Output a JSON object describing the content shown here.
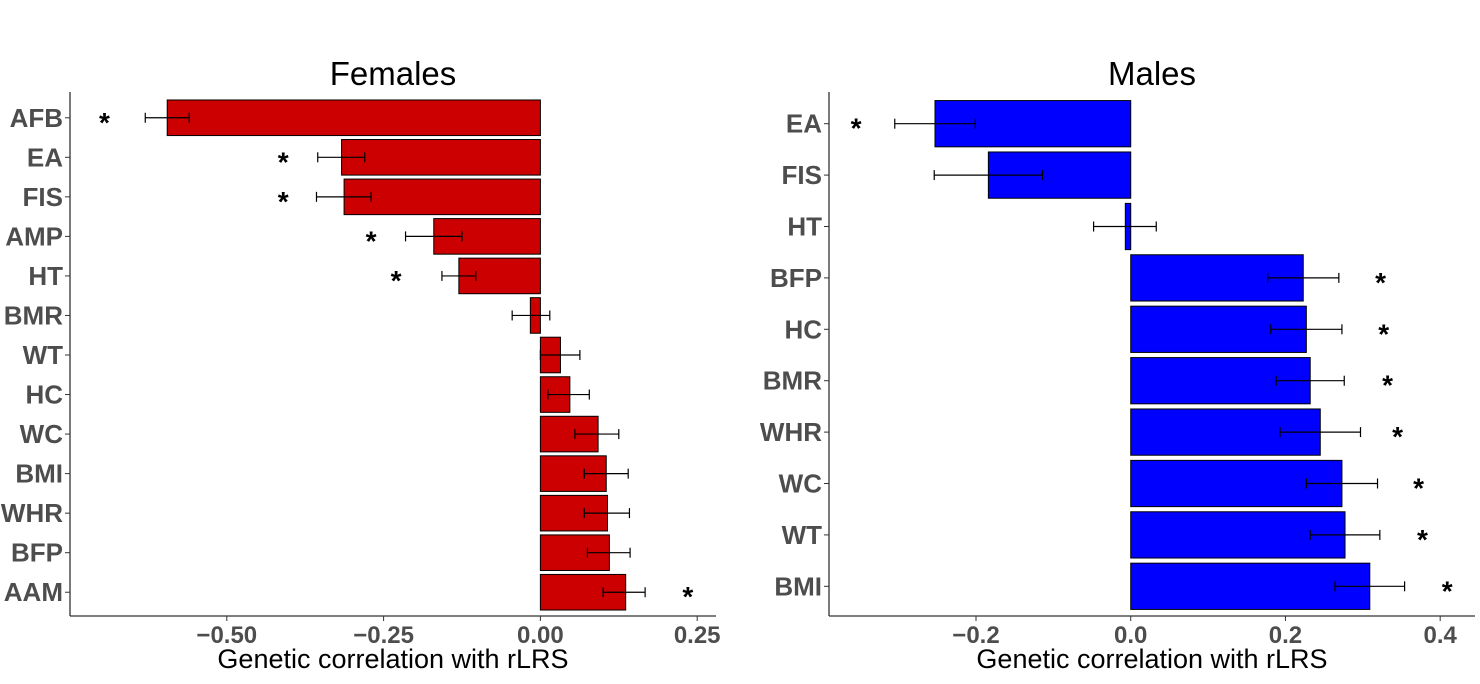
{
  "chart_data": [
    {
      "type": "bar",
      "orientation": "horizontal",
      "title": "Females",
      "xlabel": "Genetic correlation with rLRS",
      "ylabel": "",
      "color": "#cc0000",
      "xlim": [
        -0.75,
        0.28
      ],
      "xticks": [
        -0.5,
        -0.25,
        0.0,
        0.25
      ],
      "xtick_labels": [
        "−0.50",
        "−0.25",
        "0.00",
        "0.25"
      ],
      "grid": false,
      "categories": [
        "AFB",
        "EA",
        "FIS",
        "AMP",
        "HT",
        "BMR",
        "WT",
        "HC",
        "WC",
        "BMI",
        "WHR",
        "BFP",
        "AAM"
      ],
      "values": [
        -0.595,
        -0.317,
        -0.313,
        -0.17,
        -0.13,
        -0.016,
        0.032,
        0.047,
        0.092,
        0.105,
        0.107,
        0.11,
        0.136
      ],
      "error_low": [
        -0.63,
        -0.355,
        -0.357,
        -0.215,
        -0.157,
        -0.045,
        0.0,
        0.012,
        0.055,
        0.07,
        0.07,
        0.075,
        0.1
      ],
      "error_high": [
        -0.56,
        -0.28,
        -0.27,
        -0.125,
        -0.103,
        0.015,
        0.063,
        0.078,
        0.125,
        0.14,
        0.142,
        0.143,
        0.167
      ],
      "significance": [
        "*",
        "*",
        "*",
        "*",
        "*",
        "",
        "",
        "",
        "",
        "",
        "",
        "",
        "*"
      ],
      "significance_x": [
        -0.695,
        -0.41,
        -0.41,
        -0.27,
        -0.23,
        null,
        null,
        null,
        null,
        null,
        null,
        null,
        0.235
      ]
    },
    {
      "type": "bar",
      "orientation": "horizontal",
      "title": "Males",
      "xlabel": "Genetic correlation with rLRS",
      "ylabel": "",
      "color": "#0000ff",
      "xlim": [
        -0.39,
        0.445
      ],
      "xticks": [
        -0.2,
        0.0,
        0.2,
        0.4
      ],
      "xtick_labels": [
        "−0.2",
        "0.0",
        "0.2",
        "0.4"
      ],
      "grid": false,
      "categories": [
        "EA",
        "FIS",
        "HT",
        "BFP",
        "HC",
        "BMR",
        "WHR",
        "WC",
        "WT",
        "BMI"
      ],
      "values": [
        -0.253,
        -0.184,
        -0.007,
        0.223,
        0.227,
        0.232,
        0.245,
        0.273,
        0.277,
        0.309
      ],
      "error_low": [
        -0.305,
        -0.254,
        -0.048,
        0.177,
        0.181,
        0.188,
        0.193,
        0.227,
        0.232,
        0.264
      ],
      "error_high": [
        -0.201,
        -0.114,
        0.033,
        0.269,
        0.273,
        0.276,
        0.297,
        0.319,
        0.322,
        0.354
      ],
      "significance": [
        "*",
        "",
        "",
        "*",
        "*",
        "*",
        "*",
        "*",
        "*",
        "*"
      ],
      "significance_x": [
        -0.355,
        null,
        null,
        0.323,
        0.327,
        0.332,
        0.345,
        0.372,
        0.377,
        0.409
      ]
    }
  ]
}
